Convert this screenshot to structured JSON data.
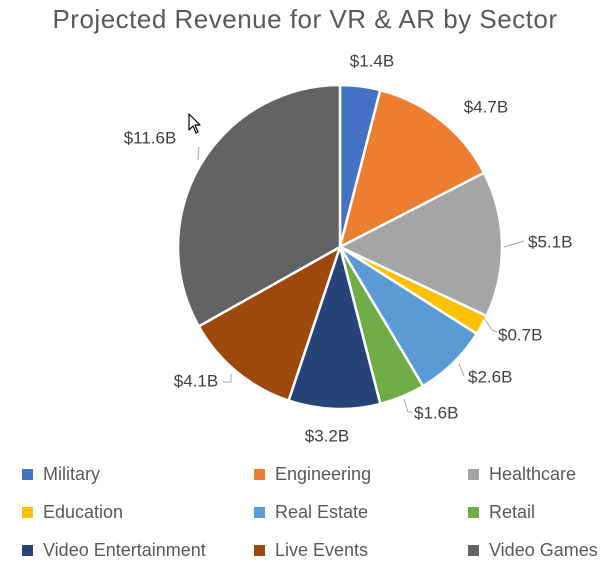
{
  "chart_data": {
    "type": "pie",
    "title": "Projected Revenue for VR & AR by Sector",
    "categories": [
      "Military",
      "Engineering",
      "Healthcare",
      "Education",
      "Real Estate",
      "Retail",
      "Video Entertainment",
      "Live Events",
      "Video Games"
    ],
    "values": [
      1.4,
      4.7,
      5.1,
      0.7,
      2.6,
      1.6,
      3.2,
      4.1,
      11.6
    ],
    "data_labels": [
      "$1.4B",
      "$4.7B",
      "$5.1B",
      "$0.7B",
      "$2.6B",
      "$1.6B",
      "$3.2B",
      "$4.1B",
      "$11.6B"
    ],
    "unit": "$B",
    "colors": [
      "#4472C4",
      "#ED7D31",
      "#A5A5A5",
      "#FFC000",
      "#5B9BD5",
      "#70AD47",
      "#264478",
      "#9E480E",
      "#636363"
    ],
    "legend_position": "bottom",
    "start_angle_deg": 0,
    "direction": "clockwise"
  }
}
